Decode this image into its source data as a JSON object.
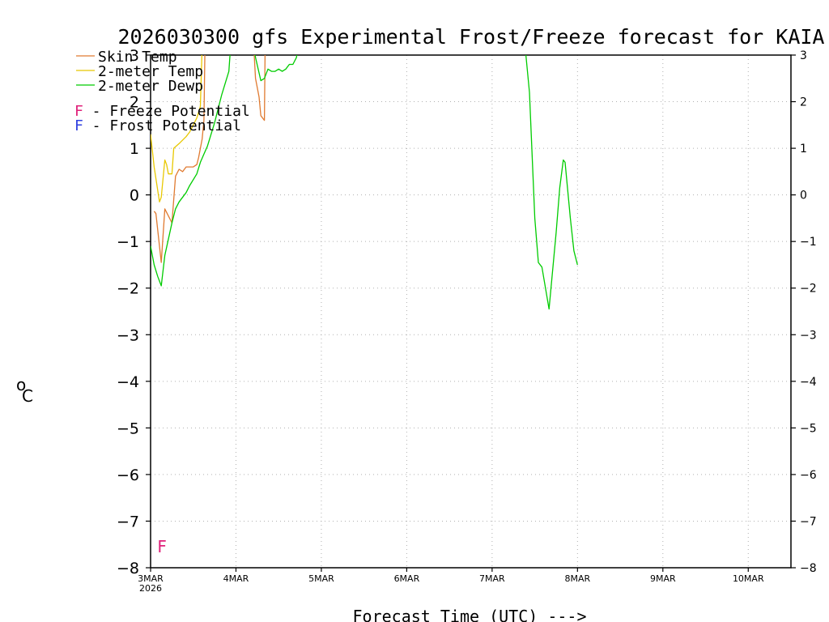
{
  "chart_data": {
    "type": "line",
    "title": "2026030300 gfs Experimental Frost/Freeze forecast for KAIA",
    "xlabel": "Forecast Time (UTC) --->",
    "ylabel_unit": "C",
    "ylabel_degree": "o",
    "ylim": [
      -8,
      3
    ],
    "xlim_hours": [
      0,
      180
    ],
    "yticks": [
      3,
      2,
      1,
      0,
      -1,
      -2,
      -3,
      -4,
      -5,
      -6,
      -7,
      -8
    ],
    "ytick_labels": [
      "3",
      "2",
      "1",
      "0",
      "−1",
      "−2",
      "−3",
      "−4",
      "−5",
      "−6",
      "−7",
      "−8"
    ],
    "xticks": [
      {
        "hour": 0,
        "label": "3MAR",
        "sublabel": "2026"
      },
      {
        "hour": 24,
        "label": "4MAR"
      },
      {
        "hour": 48,
        "label": "5MAR"
      },
      {
        "hour": 72,
        "label": "6MAR"
      },
      {
        "hour": 96,
        "label": "7MAR"
      },
      {
        "hour": 120,
        "label": "8MAR"
      },
      {
        "hour": 144,
        "label": "9MAR"
      },
      {
        "hour": 168,
        "label": "10MAR"
      }
    ],
    "grid": true,
    "legend": [
      {
        "name": "Skin Temp",
        "color": "#e07a30"
      },
      {
        "name": "2-meter Temp",
        "color": "#e8c800"
      },
      {
        "name": "2-meter Dewp",
        "color": "#00cc00"
      }
    ],
    "potential_legend": [
      {
        "symbol": "F",
        "text": " - Freeze Potential",
        "color": "#e0207a"
      },
      {
        "symbol": "F",
        "text": " - Frost Potential",
        "color": "#3040e0"
      }
    ],
    "series": [
      {
        "name": "Skin Temp",
        "color": "#e07a30",
        "points": [
          [
            1,
            -0.35
          ],
          [
            1.5,
            -0.4
          ],
          [
            3,
            -1.45
          ],
          [
            4,
            -0.3
          ],
          [
            6,
            -0.6
          ],
          [
            7,
            0.4
          ],
          [
            8,
            0.55
          ],
          [
            9,
            0.5
          ],
          [
            10,
            0.6
          ],
          [
            11,
            0.6
          ],
          [
            12,
            0.6
          ],
          [
            13,
            0.65
          ],
          [
            13.5,
            0.8
          ],
          [
            14,
            1.0
          ],
          [
            14.5,
            1.2
          ],
          [
            15,
            1.6
          ],
          [
            15.3,
            3.2
          ],
          [
            29,
            3.2
          ],
          [
            29.5,
            2.5
          ],
          [
            30.5,
            2.1
          ],
          [
            31,
            1.7
          ],
          [
            32,
            1.6
          ],
          [
            32.2,
            3.2
          ],
          [
            108,
            3.2
          ],
          [
            109,
            3.1
          ]
        ]
      },
      {
        "name": "2-meter Temp",
        "color": "#e8c800",
        "points": [
          [
            0,
            1.3
          ],
          [
            1,
            0.6
          ],
          [
            2.5,
            -0.15
          ],
          [
            3,
            -0.05
          ],
          [
            4,
            0.75
          ],
          [
            4.5,
            0.65
          ],
          [
            5,
            0.45
          ],
          [
            6,
            0.45
          ],
          [
            6.5,
            1.0
          ],
          [
            8,
            1.1
          ],
          [
            10,
            1.25
          ],
          [
            11,
            1.35
          ],
          [
            12,
            1.5
          ],
          [
            13,
            1.65
          ],
          [
            14,
            1.9
          ],
          [
            14.5,
            3.2
          ]
        ]
      },
      {
        "name": "2-meter Dewp",
        "color": "#00cc00",
        "points": [
          [
            0,
            -1.1
          ],
          [
            1,
            -1.5
          ],
          [
            2,
            -1.75
          ],
          [
            3,
            -1.95
          ],
          [
            4,
            -1.3
          ],
          [
            6,
            -0.6
          ],
          [
            7,
            -0.3
          ],
          [
            8,
            -0.15
          ],
          [
            10,
            0.05
          ],
          [
            11,
            0.2
          ],
          [
            13,
            0.45
          ],
          [
            14,
            0.7
          ],
          [
            16,
            1.05
          ],
          [
            18,
            1.55
          ],
          [
            20,
            2.15
          ],
          [
            22,
            2.65
          ],
          [
            22.5,
            3.2
          ],
          [
            29,
            3.2
          ],
          [
            29.5,
            2.95
          ],
          [
            31,
            2.45
          ],
          [
            32,
            2.5
          ],
          [
            33,
            2.7
          ],
          [
            34,
            2.65
          ],
          [
            35,
            2.65
          ],
          [
            36,
            2.7
          ],
          [
            37,
            2.65
          ],
          [
            38,
            2.7
          ],
          [
            39,
            2.8
          ],
          [
            40,
            2.8
          ],
          [
            41,
            2.95
          ],
          [
            41.5,
            3.2
          ],
          [
            105,
            3.2
          ],
          [
            105.5,
            3.0
          ],
          [
            106.5,
            2.2
          ],
          [
            108,
            -0.5
          ],
          [
            109,
            -1.45
          ],
          [
            110,
            -1.55
          ],
          [
            112,
            -2.45
          ],
          [
            114,
            -0.8
          ],
          [
            115,
            0.15
          ],
          [
            116,
            0.75
          ],
          [
            116.5,
            0.7
          ],
          [
            118,
            -0.5
          ],
          [
            119,
            -1.2
          ],
          [
            120,
            -1.5
          ]
        ]
      }
    ],
    "annotations": [
      {
        "text": "F",
        "hour": 3,
        "value": -7.55,
        "color": "#e0207a"
      }
    ]
  }
}
